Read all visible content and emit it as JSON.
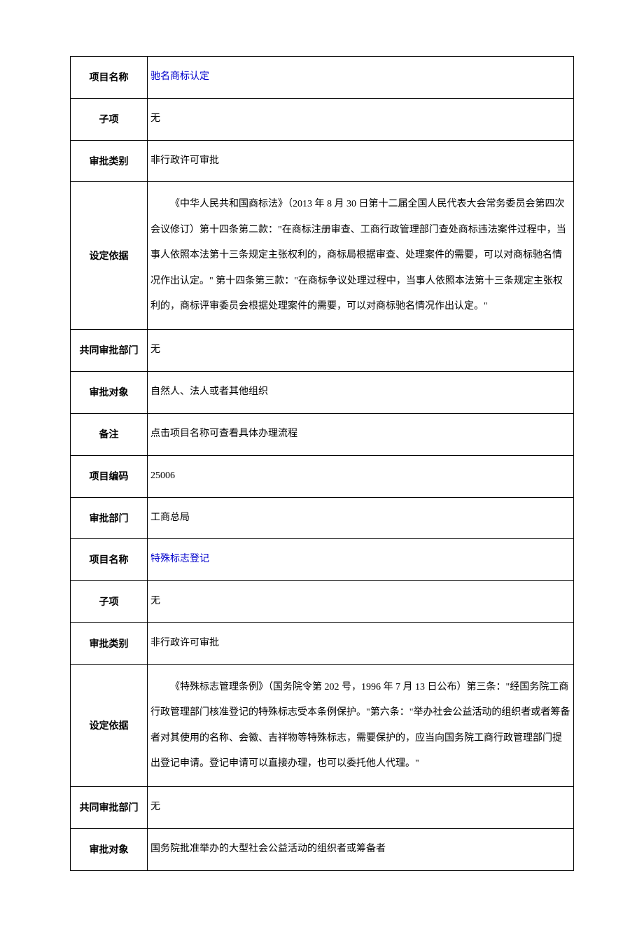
{
  "table": {
    "border_color": "#000000",
    "background_color": "#ffffff",
    "label_font": "SimHei",
    "value_font": "SimSun",
    "font_size": 14,
    "link_color": "#0000cc",
    "label_col_width": 110,
    "line_height": 2.2
  },
  "rows": [
    {
      "label": "项目名称",
      "value": "驰名商标认定",
      "is_link": true
    },
    {
      "label": "子项",
      "value": "无"
    },
    {
      "label": "审批类别",
      "value": "非行政许可审批"
    },
    {
      "label": "设定依据",
      "value": "《中华人民共和国商标法》（2013 年 8 月 30 日第十二届全国人民代表大会常务委员会第四次会议修订）第十四条第二款：\"在商标注册审查、工商行政管理部门查处商标违法案件过程中，当事人依照本法第十三条规定主张权利的，商标局根据审查、处理案件的需要，可以对商标驰名情况作出认定。\" 第十四条第三款：\"在商标争议处理过程中，当事人依照本法第十三条规定主张权利的，商标评审委员会根据处理案件的需要，可以对商标驰名情况作出认定。\"",
      "long": true
    },
    {
      "label": "共同审批部门",
      "value": "无"
    },
    {
      "label": "审批对象",
      "value": "自然人、法人或者其他组织"
    },
    {
      "label": "备注",
      "value": "点击项目名称可查看具体办理流程"
    },
    {
      "label": "项目编码",
      "value": "25006"
    },
    {
      "label": "审批部门",
      "value": "工商总局"
    },
    {
      "label": "项目名称",
      "value": "特殊标志登记",
      "is_link": true
    },
    {
      "label": "子项",
      "value": "无"
    },
    {
      "label": "审批类别",
      "value": "非行政许可审批"
    },
    {
      "label": "设定依据",
      "value": "《特殊标志管理条例》（国务院令第 202 号，1996 年 7 月 13 日公布）第三条：\"经国务院工商行政管理部门核准登记的特殊标志受本条例保护。\"第六条：\"举办社会公益活动的组织者或者筹备者对其使用的名称、会徽、吉祥物等特殊标志，需要保护的，应当向国务院工商行政管理部门提出登记申请。登记申请可以直接办理，也可以委托他人代理。\"",
      "long": true
    },
    {
      "label": "共同审批部门",
      "value": "无"
    },
    {
      "label": "审批对象",
      "value": "国务院批准举办的大型社会公益活动的组织者或筹备者"
    }
  ]
}
